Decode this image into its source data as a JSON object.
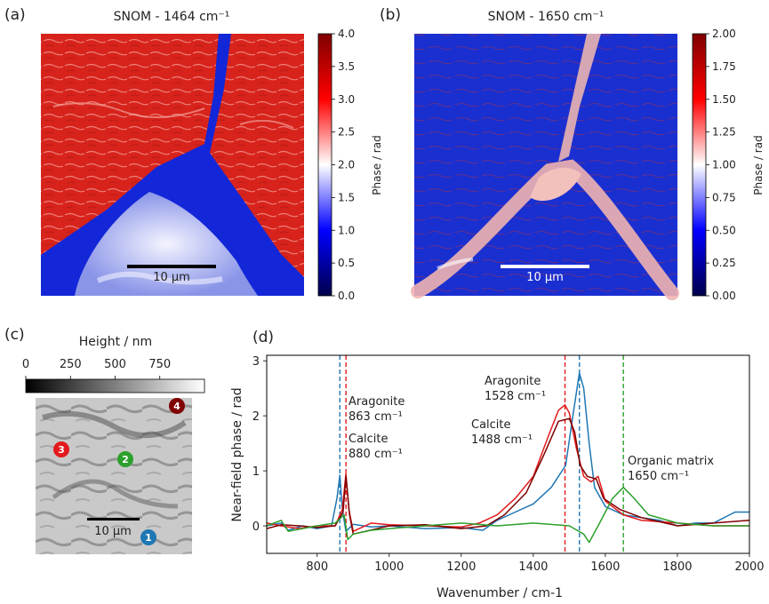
{
  "panels": {
    "a": {
      "tag": "(a)",
      "title": "SNOM - 1464 cm⁻¹",
      "scalebar": "10 μm",
      "colorbar": {
        "label": "Phase / rad",
        "ticks": [
          "0.0",
          "0.5",
          "1.0",
          "1.5",
          "2.0",
          "2.5",
          "3.0",
          "3.5",
          "4.0"
        ],
        "range": [
          0,
          4
        ]
      }
    },
    "b": {
      "tag": "(b)",
      "title": "SNOM - 1650 cm⁻¹",
      "scalebar": "10 μm",
      "colorbar": {
        "label": "Phase / rad",
        "ticks": [
          "0.00",
          "0.25",
          "0.50",
          "0.75",
          "1.00",
          "1.25",
          "1.50",
          "1.75",
          "2.00"
        ],
        "range": [
          0,
          2
        ]
      }
    },
    "c": {
      "tag": "(c)",
      "colorbar_label": "Height / nm",
      "colorbar_ticks": [
        "0",
        "250",
        "500",
        "750"
      ],
      "scalebar": "10 μm",
      "points": [
        {
          "id": "1",
          "color": "#1f77b4"
        },
        {
          "id": "2",
          "color": "#2ca02c"
        },
        {
          "id": "3",
          "color": "#e31a1c"
        },
        {
          "id": "4",
          "color": "#7f0000"
        }
      ]
    },
    "d": {
      "tag": "(d)"
    }
  },
  "chart_data": {
    "type": "line",
    "xlabel": "Wavenumber / cm-1",
    "ylabel": "Near-field phase / rad",
    "xlim": [
      660,
      2000
    ],
    "ylim": [
      -0.5,
      3.1
    ],
    "xticks": [
      800,
      1000,
      1200,
      1400,
      1600,
      1800,
      2000
    ],
    "yticks": [
      0,
      1,
      2,
      3
    ],
    "series": [
      {
        "color": "#1f77b4",
        "points": [
          [
            660,
            0
          ],
          [
            700,
            0.05
          ],
          [
            720,
            -0.08
          ],
          [
            760,
            0
          ],
          [
            800,
            -0.05
          ],
          [
            840,
            0
          ],
          [
            855,
            0.5
          ],
          [
            863,
            0.92
          ],
          [
            870,
            0.3
          ],
          [
            880,
            -0.1
          ],
          [
            900,
            0.03
          ],
          [
            950,
            -0.02
          ],
          [
            1000,
            0
          ],
          [
            1100,
            -0.05
          ],
          [
            1200,
            -0.03
          ],
          [
            1260,
            -0.08
          ],
          [
            1300,
            0.1
          ],
          [
            1350,
            0.25
          ],
          [
            1400,
            0.4
          ],
          [
            1450,
            0.7
          ],
          [
            1490,
            1.1
          ],
          [
            1510,
            2.0
          ],
          [
            1528,
            2.78
          ],
          [
            1540,
            2.5
          ],
          [
            1555,
            1.5
          ],
          [
            1570,
            0.7
          ],
          [
            1600,
            0.35
          ],
          [
            1650,
            0.2
          ],
          [
            1700,
            0.15
          ],
          [
            1750,
            0.1
          ],
          [
            1800,
            0
          ],
          [
            1850,
            0.05
          ],
          [
            1900,
            0.05
          ],
          [
            1960,
            0.25
          ],
          [
            2000,
            0.25
          ]
        ]
      },
      {
        "color": "#e31a1c",
        "points": [
          [
            660,
            0.05
          ],
          [
            700,
            0
          ],
          [
            750,
            -0.05
          ],
          [
            800,
            0
          ],
          [
            850,
            0
          ],
          [
            870,
            0.3
          ],
          [
            880,
            0.95
          ],
          [
            888,
            0.3
          ],
          [
            900,
            -0.1
          ],
          [
            950,
            0.05
          ],
          [
            1000,
            0.02
          ],
          [
            1100,
            0
          ],
          [
            1200,
            -0.02
          ],
          [
            1250,
            0.05
          ],
          [
            1300,
            0.2
          ],
          [
            1350,
            0.5
          ],
          [
            1400,
            0.9
          ],
          [
            1440,
            1.6
          ],
          [
            1470,
            2.1
          ],
          [
            1488,
            2.2
          ],
          [
            1500,
            2.05
          ],
          [
            1520,
            1.4
          ],
          [
            1540,
            0.9
          ],
          [
            1560,
            0.8
          ],
          [
            1580,
            0.9
          ],
          [
            1600,
            0.45
          ],
          [
            1650,
            0.2
          ],
          [
            1700,
            0.1
          ],
          [
            1800,
            0.05
          ],
          [
            1900,
            0
          ],
          [
            2000,
            0
          ]
        ]
      },
      {
        "color": "#7f0000",
        "points": [
          [
            660,
            -0.05
          ],
          [
            700,
            0.02
          ],
          [
            750,
            0
          ],
          [
            800,
            -0.03
          ],
          [
            850,
            0
          ],
          [
            872,
            0.25
          ],
          [
            880,
            0.9
          ],
          [
            890,
            0.2
          ],
          [
            900,
            -0.15
          ],
          [
            1000,
            0
          ],
          [
            1100,
            0.02
          ],
          [
            1200,
            -0.05
          ],
          [
            1270,
            0
          ],
          [
            1320,
            0.2
          ],
          [
            1380,
            0.6
          ],
          [
            1430,
            1.3
          ],
          [
            1470,
            1.9
          ],
          [
            1500,
            1.95
          ],
          [
            1515,
            1.7
          ],
          [
            1530,
            1.1
          ],
          [
            1550,
            0.9
          ],
          [
            1575,
            0.85
          ],
          [
            1595,
            0.5
          ],
          [
            1640,
            0.3
          ],
          [
            1700,
            0.15
          ],
          [
            1800,
            0
          ],
          [
            1900,
            0.05
          ],
          [
            2000,
            0.1
          ]
        ]
      },
      {
        "color": "#2ca02c",
        "points": [
          [
            660,
            0
          ],
          [
            700,
            0.1
          ],
          [
            720,
            -0.1
          ],
          [
            800,
            0
          ],
          [
            850,
            0.05
          ],
          [
            875,
            0.2
          ],
          [
            885,
            -0.25
          ],
          [
            900,
            -0.15
          ],
          [
            950,
            -0.08
          ],
          [
            1000,
            -0.05
          ],
          [
            1100,
            0
          ],
          [
            1200,
            0.05
          ],
          [
            1300,
            0
          ],
          [
            1400,
            0.05
          ],
          [
            1500,
            0
          ],
          [
            1540,
            -0.15
          ],
          [
            1555,
            -0.3
          ],
          [
            1580,
            0
          ],
          [
            1620,
            0.5
          ],
          [
            1650,
            0.7
          ],
          [
            1680,
            0.5
          ],
          [
            1720,
            0.2
          ],
          [
            1800,
            0.05
          ],
          [
            1900,
            0
          ],
          [
            2000,
            0
          ]
        ]
      }
    ],
    "vlines": [
      {
        "x": 863,
        "color": "#1f77b4"
      },
      {
        "x": 880,
        "color": "#e31a1c"
      },
      {
        "x": 1488,
        "color": "#e31a1c"
      },
      {
        "x": 1528,
        "color": "#1f77b4"
      },
      {
        "x": 1650,
        "color": "#2ca02c"
      }
    ],
    "annotations": [
      {
        "line1": "Aragonite",
        "line2": "863 cm⁻¹",
        "color": "#1f77b4"
      },
      {
        "line1": "Calcite",
        "line2": "880 cm⁻¹",
        "color": "#e31a1c"
      },
      {
        "line1": "Aragonite",
        "line2": "1528 cm⁻¹",
        "color": "#1f77b4"
      },
      {
        "line1": "Calcite",
        "line2": "1488 cm⁻¹",
        "color": "#e31a1c"
      },
      {
        "line1": "Organic matrix",
        "line2": "1650 cm⁻¹",
        "color": "#2ca02c"
      }
    ]
  }
}
